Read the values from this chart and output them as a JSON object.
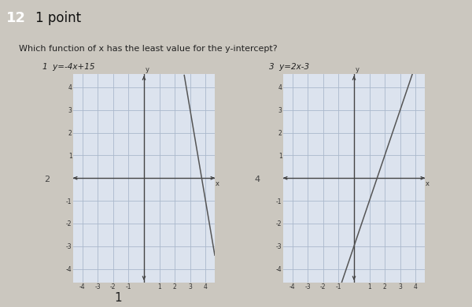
{
  "title_number": "12",
  "points_label": "1 point",
  "question": "Which function of x has the least value for the y-intercept?",
  "eq1_label": "1  y=-4x+15",
  "eq2_label": "3  y=2x-3",
  "answer_label": "1",
  "bg_color": "#cbc7bf",
  "graph_bg": "#dce3ee",
  "grid_color": "#aab8cc",
  "axis_color": "#444444",
  "line_color": "#555555",
  "box_color": "#222222",
  "xmin": -4,
  "xmax": 4,
  "ymin": -4,
  "ymax": 4,
  "slope1": -4,
  "intercept1": 15,
  "slope2": 2,
  "intercept2": -3,
  "label2": "2",
  "label4": "4"
}
